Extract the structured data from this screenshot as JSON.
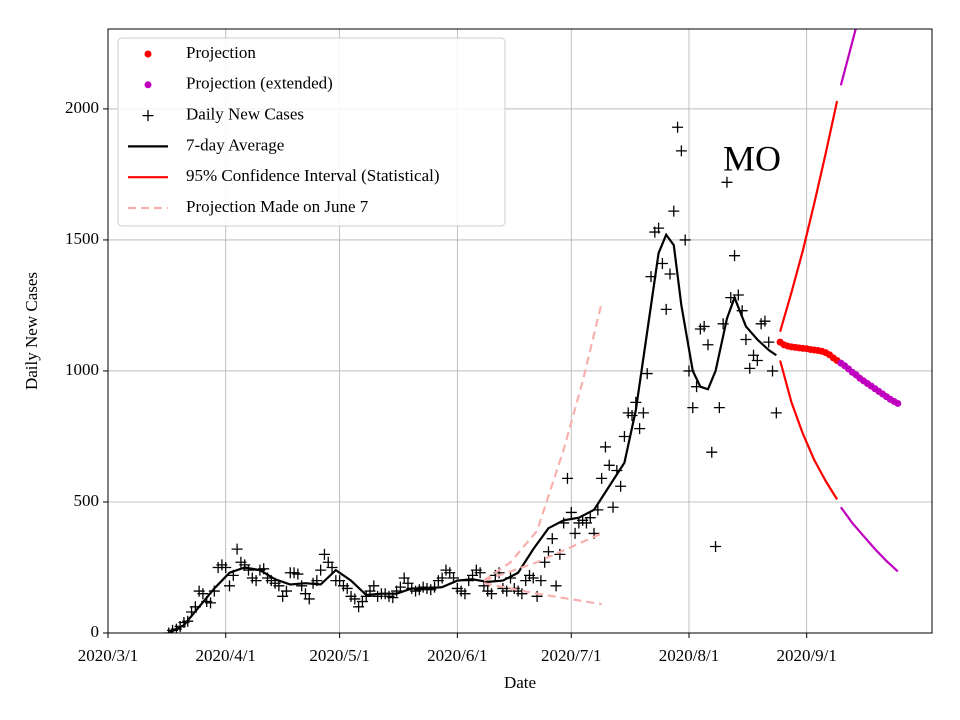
{
  "chart_data": {
    "type": "line",
    "xlabel": "Date",
    "ylabel": "Daily New Cases",
    "annotation": "MO",
    "xlim": [
      "2020-03-01",
      "2020-10-04"
    ],
    "xticks": [
      "2020/3/1",
      "2020/4/1",
      "2020/5/1",
      "2020/6/1",
      "2020/7/1",
      "2020/8/1",
      "2020/9/1"
    ],
    "ylim": [
      0,
      2305
    ],
    "yticks": [
      0,
      500,
      1000,
      1500,
      2000
    ],
    "grid": true,
    "legend": "upper left",
    "x": [
      "2020-03-17",
      "2020-03-18",
      "2020-03-19",
      "2020-03-20",
      "2020-03-21",
      "2020-03-22",
      "2020-03-23",
      "2020-03-24",
      "2020-03-25",
      "2020-03-26",
      "2020-03-27",
      "2020-03-28",
      "2020-03-29",
      "2020-03-30",
      "2020-03-31",
      "2020-04-01",
      "2020-04-02",
      "2020-04-03",
      "2020-04-04",
      "2020-04-05",
      "2020-04-06",
      "2020-04-07",
      "2020-04-08",
      "2020-04-09",
      "2020-04-10",
      "2020-04-11",
      "2020-04-12",
      "2020-04-13",
      "2020-04-14",
      "2020-04-15",
      "2020-04-16",
      "2020-04-17",
      "2020-04-18",
      "2020-04-19",
      "2020-04-20",
      "2020-04-21",
      "2020-04-22",
      "2020-04-23",
      "2020-04-24",
      "2020-04-25",
      "2020-04-26",
      "2020-04-27",
      "2020-04-28",
      "2020-04-29",
      "2020-04-30",
      "2020-05-01",
      "2020-05-02",
      "2020-05-03",
      "2020-05-04",
      "2020-05-05",
      "2020-05-06",
      "2020-05-07",
      "2020-05-08",
      "2020-05-09",
      "2020-05-10",
      "2020-05-11",
      "2020-05-12",
      "2020-05-13",
      "2020-05-14",
      "2020-05-15",
      "2020-05-16",
      "2020-05-17",
      "2020-05-18",
      "2020-05-19",
      "2020-05-20",
      "2020-05-21",
      "2020-05-22",
      "2020-05-23",
      "2020-05-24",
      "2020-05-25",
      "2020-05-26",
      "2020-05-27",
      "2020-05-28",
      "2020-05-29",
      "2020-05-30",
      "2020-05-31",
      "2020-06-01",
      "2020-06-02",
      "2020-06-03",
      "2020-06-04",
      "2020-06-05",
      "2020-06-06",
      "2020-06-07",
      "2020-06-08",
      "2020-06-09",
      "2020-06-10",
      "2020-06-11",
      "2020-06-12",
      "2020-06-13",
      "2020-06-14",
      "2020-06-15",
      "2020-06-16",
      "2020-06-17",
      "2020-06-18",
      "2020-06-19",
      "2020-06-20",
      "2020-06-21",
      "2020-06-22",
      "2020-06-23",
      "2020-06-24",
      "2020-06-25",
      "2020-06-26",
      "2020-06-27",
      "2020-06-28",
      "2020-06-29",
      "2020-06-30",
      "2020-07-01",
      "2020-07-02",
      "2020-07-03",
      "2020-07-04",
      "2020-07-05",
      "2020-07-06",
      "2020-07-07",
      "2020-07-08",
      "2020-07-09",
      "2020-07-10",
      "2020-07-11",
      "2020-07-12",
      "2020-07-13",
      "2020-07-14",
      "2020-07-15",
      "2020-07-16",
      "2020-07-17",
      "2020-07-18",
      "2020-07-19",
      "2020-07-20",
      "2020-07-21",
      "2020-07-22",
      "2020-07-23",
      "2020-07-24",
      "2020-07-25",
      "2020-07-26",
      "2020-07-27",
      "2020-07-28",
      "2020-07-29",
      "2020-07-30",
      "2020-07-31",
      "2020-08-01",
      "2020-08-02",
      "2020-08-03",
      "2020-08-04",
      "2020-08-05",
      "2020-08-06",
      "2020-08-07",
      "2020-08-08",
      "2020-08-09",
      "2020-08-10",
      "2020-08-11",
      "2020-08-12",
      "2020-08-13",
      "2020-08-14",
      "2020-08-15",
      "2020-08-16",
      "2020-08-17",
      "2020-08-18",
      "2020-08-19",
      "2020-08-20",
      "2020-08-21",
      "2020-08-22",
      "2020-08-23",
      "2020-08-24"
    ],
    "series": [
      {
        "name": "Projection",
        "color": "#ff0000",
        "marker": "dot",
        "x": [
          "2020-08-25",
          "2020-08-26",
          "2020-08-27",
          "2020-08-28",
          "2020-08-29",
          "2020-08-30",
          "2020-08-31",
          "2020-09-01",
          "2020-09-02",
          "2020-09-03",
          "2020-09-04",
          "2020-09-05",
          "2020-09-06",
          "2020-09-07",
          "2020-09-08",
          "2020-09-09"
        ],
        "values": [
          1110,
          1100,
          1095,
          1092,
          1090,
          1088,
          1086,
          1085,
          1082,
          1080,
          1078,
          1075,
          1070,
          1062,
          1050,
          1040
        ]
      },
      {
        "name": "Projection (extended)",
        "color": "#bf00bf",
        "marker": "dot",
        "x": [
          "2020-09-10",
          "2020-09-11",
          "2020-09-12",
          "2020-09-13",
          "2020-09-14",
          "2020-09-15",
          "2020-09-16",
          "2020-09-17",
          "2020-09-18",
          "2020-09-19",
          "2020-09-20",
          "2020-09-21",
          "2020-09-22",
          "2020-09-23",
          "2020-09-24",
          "2020-09-25"
        ],
        "values": [
          1030,
          1020,
          1008,
          995,
          985,
          972,
          962,
          952,
          942,
          932,
          922,
          912,
          902,
          892,
          884,
          876
        ]
      },
      {
        "name": "Daily New Cases",
        "color": "#000000",
        "marker": "cross",
        "values": [
          0,
          10,
          15,
          25,
          40,
          45,
          80,
          100,
          160,
          150,
          120,
          115,
          160,
          250,
          260,
          250,
          180,
          220,
          320,
          270,
          260,
          240,
          210,
          200,
          240,
          245,
          210,
          200,
          190,
          180,
          140,
          160,
          230,
          230,
          225,
          180,
          150,
          130,
          190,
          200,
          240,
          300,
          270,
          250,
          200,
          200,
          180,
          170,
          140,
          130,
          100,
          120,
          140,
          160,
          180,
          140,
          150,
          150,
          140,
          135,
          160,
          175,
          210,
          190,
          170,
          160,
          165,
          175,
          170,
          165,
          175,
          200,
          210,
          240,
          230,
          210,
          170,
          160,
          150,
          200,
          220,
          240,
          230,
          180,
          160,
          150,
          220,
          230,
          170,
          160,
          210,
          170,
          160,
          150,
          200,
          220,
          210,
          140,
          200,
          270,
          310,
          360,
          180,
          300,
          420,
          590,
          460,
          380,
          420,
          430,
          420,
          440,
          380,
          470,
          590,
          710,
          640,
          480,
          620,
          560,
          750,
          840,
          830,
          880,
          780,
          840,
          990,
          1360,
          1530,
          1545,
          1410,
          1235,
          1370,
          1610,
          1930,
          1840,
          1500,
          1000,
          860,
          940,
          1160,
          1170,
          1100,
          690,
          330,
          860,
          1180,
          1720,
          1280,
          1440,
          1290,
          1230,
          1120,
          1010,
          1060,
          1040,
          1180,
          1190,
          1110,
          1000,
          840
        ]
      },
      {
        "name": "7-day Average",
        "color": "#000000",
        "marker": "line",
        "x": [
          "2020-03-17",
          "2020-03-21",
          "2020-03-25",
          "2020-03-29",
          "2020-04-02",
          "2020-04-06",
          "2020-04-10",
          "2020-04-14",
          "2020-04-18",
          "2020-04-22",
          "2020-04-26",
          "2020-04-30",
          "2020-05-04",
          "2020-05-08",
          "2020-05-12",
          "2020-05-16",
          "2020-05-20",
          "2020-05-24",
          "2020-05-28",
          "2020-06-01",
          "2020-06-05",
          "2020-06-09",
          "2020-06-13",
          "2020-06-17",
          "2020-06-21",
          "2020-06-25",
          "2020-06-29",
          "2020-07-03",
          "2020-07-07",
          "2020-07-11",
          "2020-07-15",
          "2020-07-18",
          "2020-07-21",
          "2020-07-24",
          "2020-07-26",
          "2020-07-28",
          "2020-07-30",
          "2020-08-02",
          "2020-08-04",
          "2020-08-06",
          "2020-08-08",
          "2020-08-11",
          "2020-08-13",
          "2020-08-16",
          "2020-08-19",
          "2020-08-22",
          "2020-08-24"
        ],
        "values": [
          0,
          30,
          100,
          170,
          230,
          250,
          240,
          205,
          185,
          190,
          185,
          240,
          200,
          145,
          150,
          150,
          170,
          170,
          175,
          200,
          205,
          195,
          200,
          230,
          320,
          400,
          430,
          440,
          470,
          560,
          650,
          850,
          1150,
          1450,
          1520,
          1480,
          1250,
          1000,
          940,
          930,
          1000,
          1200,
          1280,
          1170,
          1120,
          1080,
          1060
        ]
      },
      {
        "name": "95% Confidence Interval (Statistical)",
        "color": "#ff0000",
        "marker": "line",
        "x": [
          "2020-08-25",
          "2020-08-28",
          "2020-08-31",
          "2020-09-03",
          "2020-09-06",
          "2020-09-09"
        ],
        "values": [
          1150,
          1300,
          1460,
          1640,
          1830,
          2030
        ]
      },
      {
        "name": "Projection Made on June 7",
        "color": "#f7b0ae",
        "marker": "dash",
        "x": [
          "2020-06-08",
          "2020-06-15",
          "2020-06-22",
          "2020-06-29",
          "2020-07-04",
          "2020-07-09"
        ],
        "values": [
          200,
          270,
          390,
          700,
          960,
          1260
        ]
      },
      {
        "color": "#ff0000",
        "marker": "line",
        "x": [
          "2020-08-25",
          "2020-08-28",
          "2020-08-31",
          "2020-09-03",
          "2020-09-06",
          "2020-09-09"
        ],
        "values": [
          1040,
          880,
          760,
          660,
          580,
          510
        ]
      },
      {
        "color": "#bf00bf",
        "marker": "line",
        "x": [
          "2020-09-10",
          "2020-09-12",
          "2020-09-14"
        ],
        "values": [
          2090,
          2200,
          2310
        ]
      },
      {
        "color": "#bf00bf",
        "marker": "line",
        "x": [
          "2020-09-10",
          "2020-09-13",
          "2020-09-16",
          "2020-09-19",
          "2020-09-22",
          "2020-09-25"
        ],
        "values": [
          480,
          420,
          370,
          320,
          275,
          235
        ]
      },
      {
        "color": "#f7b0ae",
        "marker": "dash",
        "x": [
          "2020-06-08",
          "2020-06-22",
          "2020-07-09"
        ],
        "values": [
          200,
          270,
          380
        ]
      },
      {
        "color": "#f7b0ae",
        "marker": "dash",
        "x": [
          "2020-06-08",
          "2020-06-22",
          "2020-07-09"
        ],
        "values": [
          190,
          150,
          110
        ]
      }
    ]
  }
}
